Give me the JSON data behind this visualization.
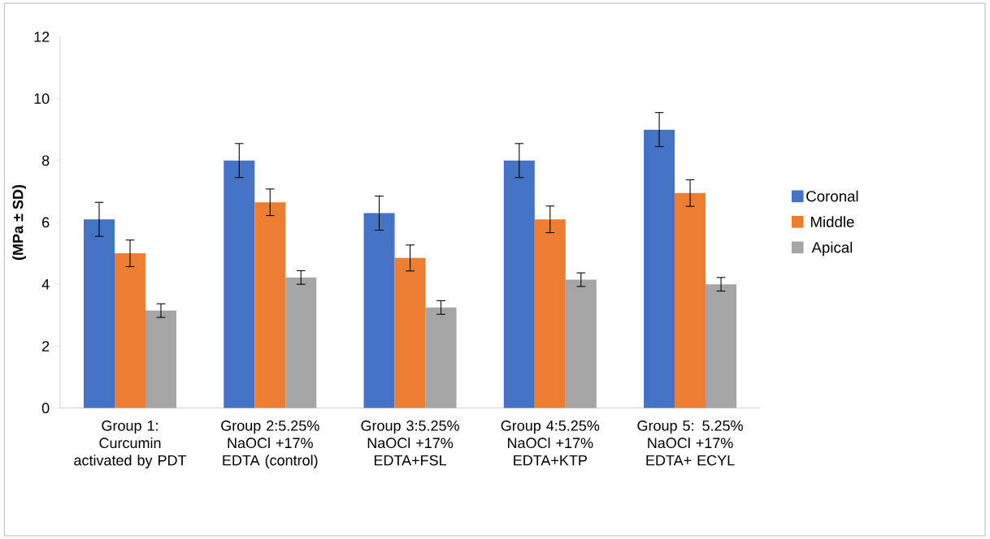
{
  "chart_data": {
    "type": "bar",
    "ylabel": "(MPa ± SD)",
    "categories": [
      "Group 1: Curcumin activated by PDT",
      "Group 2:5.25% NaOCl +17% EDTA (control)",
      "Group 3:5.25% NaOCl +17% EDTA+FSL",
      "Group 4:5.25% NaOCl +17% EDTA+KTP",
      "Group 5: 5.25% NaOCl +17% EDTA+ ECYL"
    ],
    "series": [
      {
        "name": "Coronal",
        "color": "#4472c4",
        "values": [
          6.1,
          8.0,
          6.3,
          8.0,
          9.0
        ],
        "errors": [
          0.55,
          0.55,
          0.55,
          0.55,
          0.55
        ]
      },
      {
        "name": "Middle",
        "color": "#ed7d31",
        "values": [
          5.0,
          6.65,
          4.85,
          6.1,
          6.95
        ],
        "errors": [
          0.43,
          0.43,
          0.42,
          0.43,
          0.43
        ]
      },
      {
        "name": "Apical",
        "color": "#a5a5a5",
        "values": [
          3.15,
          4.22,
          3.25,
          4.15,
          4.0
        ],
        "errors": [
          0.22,
          0.22,
          0.22,
          0.22,
          0.22
        ]
      }
    ],
    "ylim": [
      0,
      12
    ],
    "yticks": [
      0,
      2,
      4,
      6,
      8,
      10,
      12
    ],
    "grid": false,
    "legend": "right"
  }
}
